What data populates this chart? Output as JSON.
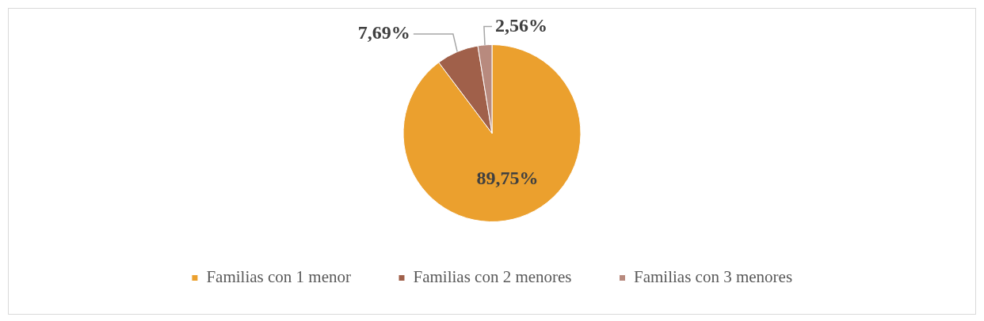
{
  "chart_data": {
    "type": "pie",
    "categories": [
      "Familias con 1 menor",
      "Familias con 2 menores",
      "Familias con 3 menores"
    ],
    "values": [
      89.75,
      7.69,
      2.56
    ],
    "colors": [
      "#eba02e",
      "#a0604a",
      "#b88a7e"
    ],
    "value_labels": [
      "89,75%",
      "7,69%",
      "2,56%"
    ],
    "legend": "bottom"
  }
}
